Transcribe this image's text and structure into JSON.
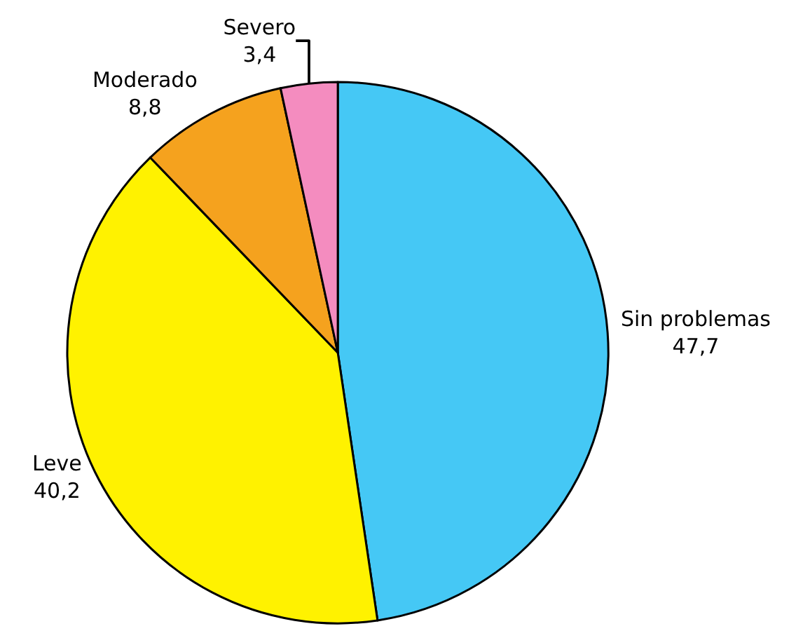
{
  "chart_data": {
    "type": "pie",
    "categories": [
      "Sin problemas",
      "Leve",
      "Moderado",
      "Severo"
    ],
    "values": [
      47.7,
      40.2,
      8.8,
      3.4
    ],
    "value_labels": [
      "47,7",
      "40,2",
      "8,8",
      "3,4"
    ],
    "colors": [
      "#45c8f5",
      "#fff200",
      "#f5a21e",
      "#f48cbf"
    ],
    "legend": false
  }
}
